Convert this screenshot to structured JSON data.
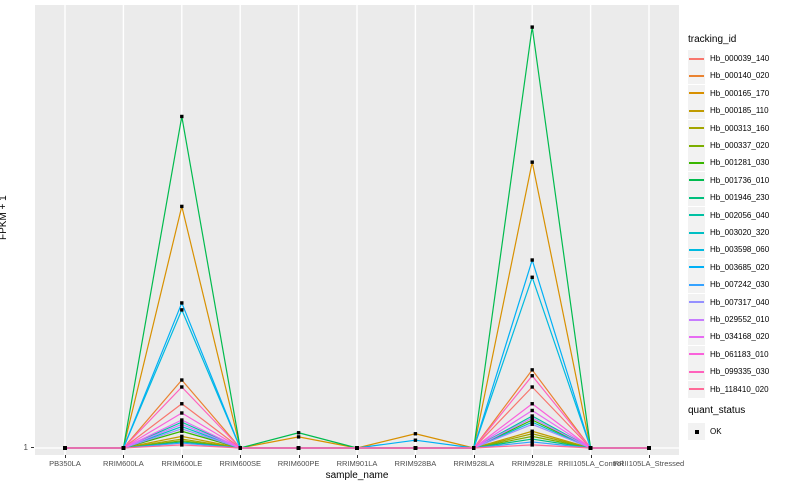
{
  "chart": {
    "y_axis_title": "FPKM + 1",
    "x_axis_title": "sample_name",
    "y_tick_label": "1",
    "legend": {
      "tracking_title": "tracking_id",
      "quant_title": "quant_status",
      "quant_ok_label": "OK"
    },
    "colors": {
      "panel_bg": "#EBEBEB",
      "gridline": "#FFFFFF",
      "tick_text": "#4D4D4D",
      "axis_title_text": "#000000",
      "point": "#000000",
      "legend_key_bg": "#F2F2F2"
    }
  },
  "chart_data": {
    "type": "line",
    "title": "",
    "xlabel": "sample_name",
    "ylabel": "FPKM + 1",
    "yscale": "log10",
    "yticks": [
      1
    ],
    "ylim": [
      1,
      1000
    ],
    "grid": "vertical-major-plus-baseline",
    "legend_position": "right",
    "point_marker": {
      "shape": "square",
      "color": "#000000",
      "legend_group": "quant_status",
      "label": "OK"
    },
    "categories": [
      "PB350LA",
      "RRIM600LA",
      "RRIM600LE",
      "RRIM600SE",
      "RRIM600PE",
      "RRIM901LA",
      "RRIM928BA",
      "RRIM928LA",
      "RRIM928LE",
      "RRII105LA_Control",
      "RRII105LA_Stressed"
    ],
    "series": [
      {
        "name": "Hb_000039_140",
        "color": "#F8766D",
        "values": [
          1,
          1,
          2.0,
          1,
          1,
          1,
          1,
          1,
          2.6,
          1,
          1
        ]
      },
      {
        "name": "Hb_000140_020",
        "color": "#EA8331",
        "values": [
          1,
          1,
          2.9,
          1,
          1,
          1,
          1,
          1,
          3.4,
          1,
          1
        ]
      },
      {
        "name": "Hb_000165_170",
        "color": "#D89000",
        "values": [
          1,
          1,
          44,
          1,
          1.19,
          1,
          1.25,
          1,
          88,
          1,
          1
        ]
      },
      {
        "name": "Hb_000185_110",
        "color": "#C09B00",
        "values": [
          1,
          1,
          1.2,
          1,
          1,
          1,
          1,
          1,
          1.3,
          1,
          1
        ]
      },
      {
        "name": "Hb_000313_160",
        "color": "#A3A500",
        "values": [
          1,
          1,
          1.15,
          1,
          1,
          1,
          1,
          1,
          1.25,
          1,
          1
        ]
      },
      {
        "name": "Hb_000337_020",
        "color": "#7CAE00",
        "values": [
          1,
          1,
          1.12,
          1,
          1,
          1,
          1,
          1,
          1.2,
          1,
          1
        ]
      },
      {
        "name": "Hb_001281_030",
        "color": "#39B600",
        "values": [
          1,
          1,
          1.3,
          1,
          1,
          1,
          1,
          1,
          1.55,
          1,
          1
        ]
      },
      {
        "name": "Hb_001736_010",
        "color": "#00BB4E",
        "values": [
          1,
          1,
          180,
          1,
          1.27,
          1,
          1,
          1,
          730,
          1,
          1
        ]
      },
      {
        "name": "Hb_001946_230",
        "color": "#00BF7D",
        "values": [
          1,
          1,
          1.1,
          1,
          1,
          1,
          1,
          1,
          1.15,
          1,
          1
        ]
      },
      {
        "name": "Hb_002056_040",
        "color": "#00C1A3",
        "values": [
          1,
          1,
          1.5,
          1,
          1,
          1,
          1,
          1,
          1.65,
          1,
          1
        ]
      },
      {
        "name": "Hb_003020_320",
        "color": "#00BFC4",
        "values": [
          1,
          1,
          1.4,
          1,
          1,
          1,
          1,
          1,
          1.5,
          1,
          1
        ]
      },
      {
        "name": "Hb_003598_060",
        "color": "#00BAE0",
        "values": [
          1,
          1,
          8.7,
          1,
          1,
          1,
          1,
          1,
          14.5,
          1,
          1
        ]
      },
      {
        "name": "Hb_003685_020",
        "color": "#00B0F6",
        "values": [
          1,
          1,
          9.7,
          1,
          1,
          1,
          1.13,
          1,
          19,
          1,
          1
        ]
      },
      {
        "name": "Hb_007242_030",
        "color": "#35A2FF",
        "values": [
          1,
          1,
          1.08,
          1,
          1,
          1,
          1,
          1,
          1.1,
          1,
          1
        ]
      },
      {
        "name": "Hb_007317_040",
        "color": "#9590FF",
        "values": [
          1,
          1,
          1.35,
          1,
          1,
          1,
          1,
          1,
          1.45,
          1,
          1
        ]
      },
      {
        "name": "Hb_029552_010",
        "color": "#C77CFF",
        "values": [
          1,
          1,
          1.45,
          1,
          1,
          1,
          1,
          1,
          1.6,
          1,
          1
        ]
      },
      {
        "name": "Hb_034168_020",
        "color": "#E76BF3",
        "values": [
          1,
          1,
          1.55,
          1,
          1,
          1,
          1,
          1,
          1.8,
          1,
          1
        ]
      },
      {
        "name": "Hb_061183_010",
        "color": "#FA62DB",
        "values": [
          1,
          1,
          1.73,
          1,
          1,
          1,
          1,
          1,
          2.0,
          1,
          1
        ]
      },
      {
        "name": "Hb_099335_030",
        "color": "#FF62BC",
        "values": [
          1,
          1,
          2.6,
          1,
          1,
          1,
          1,
          1,
          3.1,
          1,
          1
        ]
      },
      {
        "name": "Hb_118410_020",
        "color": "#FF6A98",
        "values": [
          1,
          1,
          1.05,
          1,
          1,
          1,
          1,
          1,
          1.05,
          1,
          1
        ]
      }
    ]
  }
}
